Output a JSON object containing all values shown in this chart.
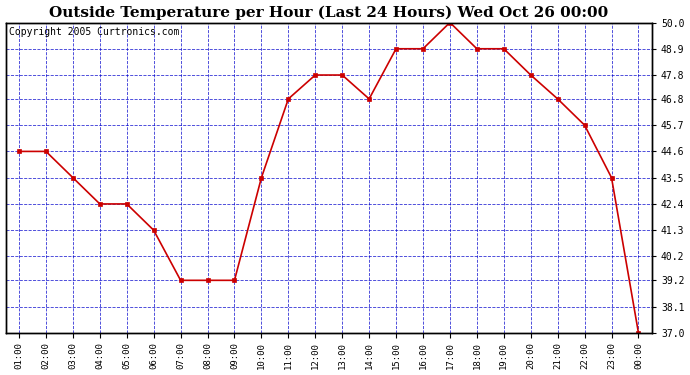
{
  "title": "Outside Temperature per Hour (Last 24 Hours) Wed Oct 26 00:00",
  "copyright": "Copyright 2005 Curtronics.com",
  "hours": [
    "01:00",
    "02:00",
    "03:00",
    "04:00",
    "05:00",
    "06:00",
    "07:00",
    "08:00",
    "09:00",
    "10:00",
    "11:00",
    "12:00",
    "13:00",
    "14:00",
    "15:00",
    "16:00",
    "17:00",
    "18:00",
    "19:00",
    "20:00",
    "21:00",
    "22:00",
    "23:00",
    "00:00"
  ],
  "temps": [
    44.6,
    44.6,
    43.5,
    42.4,
    42.4,
    41.3,
    39.2,
    39.2,
    39.2,
    43.5,
    46.8,
    47.8,
    47.8,
    46.8,
    48.9,
    48.9,
    50.0,
    48.9,
    48.9,
    47.8,
    46.8,
    45.7,
    43.5,
    37.0
  ],
  "ylim_min": 37.0,
  "ylim_max": 50.0,
  "ytick_values": [
    37.0,
    38.1,
    39.2,
    40.2,
    41.3,
    42.4,
    43.5,
    44.6,
    45.7,
    46.8,
    47.8,
    48.9,
    50.0
  ],
  "line_color": "#cc0000",
  "marker_color": "#cc0000",
  "bg_color": "#ffffff",
  "plot_bg": "#ffffff",
  "grid_color": "#0000cc",
  "border_color": "#000000",
  "title_fontsize": 11,
  "copyright_fontsize": 7
}
